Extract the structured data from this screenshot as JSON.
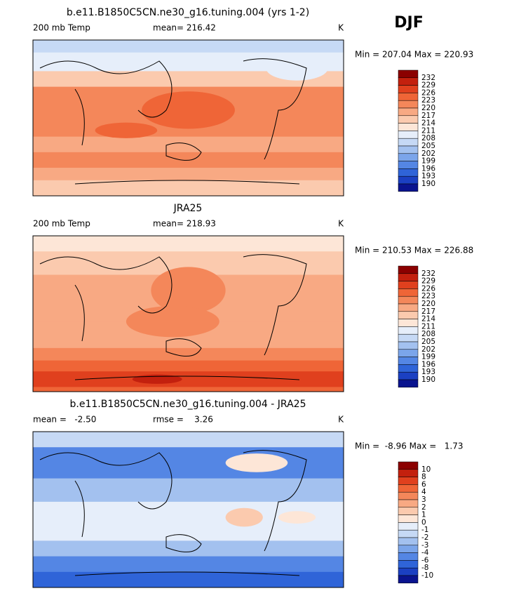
{
  "header": {
    "title": "DJF"
  },
  "colorbar_colors": [
    "#8b0000",
    "#c3200e",
    "#e0401e",
    "#ef6537",
    "#f4875a",
    "#f8a983",
    "#fbcaae",
    "#fde6d7",
    "#e6eefa",
    "#c6d9f5",
    "#a3c1ef",
    "#7ba5ea",
    "#5486e4",
    "#2f64d8",
    "#1b40c2",
    "#0a148f"
  ],
  "panels": [
    {
      "title": "b.e11.B1850C5CN.ne30_g16.tuning.004 (yrs 1-2)",
      "left": "200 mb Temp",
      "center": "mean= 216.42",
      "right": "K",
      "minmax": "Min = 207.04 Max = 220.93",
      "colorbar_labels": [
        "232",
        "229",
        "226",
        "223",
        "220",
        "217",
        "214",
        "211",
        "208",
        "205",
        "202",
        "199",
        "196",
        "193",
        "190"
      ]
    },
    {
      "title": "JRA25",
      "left": "200 mb Temp",
      "center": "mean= 218.93",
      "right": "K",
      "minmax": "Min = 210.53 Max = 226.88",
      "colorbar_labels": [
        "232",
        "229",
        "226",
        "223",
        "220",
        "217",
        "214",
        "211",
        "208",
        "205",
        "202",
        "199",
        "196",
        "193",
        "190"
      ]
    },
    {
      "title": "b.e11.B1850C5CN.ne30_g16.tuning.004 - JRA25",
      "left": "mean =   -2.50",
      "center": "rmse =    3.26",
      "right": "K",
      "minmax": "Min =  -8.96 Max =   1.73",
      "colorbar_labels": [
        "10",
        "8",
        "6",
        "4",
        "3",
        "2",
        "1",
        "0",
        "-1",
        "-2",
        "-3",
        "-4",
        "-6",
        "-8",
        "-10"
      ]
    }
  ]
}
